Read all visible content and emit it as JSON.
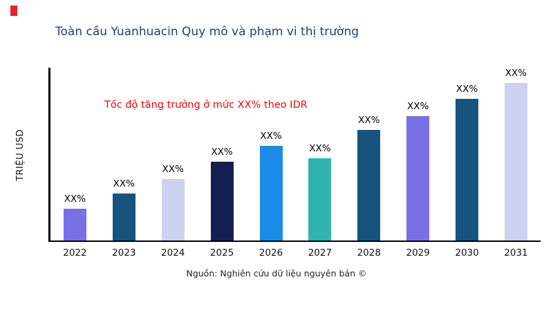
{
  "brand": {
    "mark_color": "#e8232a"
  },
  "colors": {
    "title": "#1f3d73",
    "annotation": "#ff0000",
    "axis": "#000000"
  },
  "footer": {
    "source": "Nguồn: Nghiên cứu dữ liệu nguyên bản ©"
  },
  "chart_data": {
    "type": "bar",
    "title": "Toàn cầu Yuanhuacin Quy mô và phạm vi thị trường",
    "xlabel": "",
    "ylabel": "TRIỆU USD",
    "annotation": "Tốc độ tăng trưởng ở mức XX% theo IDR",
    "categories": [
      "2022",
      "2023",
      "2024",
      "2025",
      "2026",
      "2027",
      "2028",
      "2029",
      "2030",
      "2031"
    ],
    "values": [
      20,
      30,
      39,
      50,
      60,
      52,
      70,
      79,
      90,
      100
    ],
    "value_labels": [
      "XX%",
      "XX%",
      "XX%",
      "XX%",
      "XX%",
      "XX%",
      "XX%",
      "XX%",
      "XX%",
      "XX%"
    ],
    "bar_colors": [
      "#7b6fe6",
      "#16537e",
      "#cdd2f0",
      "#131f4e",
      "#1b8ce8",
      "#2fb5ad",
      "#16537e",
      "#7b6fe6",
      "#16537e",
      "#cdd2f0"
    ],
    "ylim": [
      0,
      110
    ],
    "grid": false,
    "legend": false,
    "note": "values are relative bar heights estimated from pixels; actual magnitudes masked as XX% in source image"
  }
}
